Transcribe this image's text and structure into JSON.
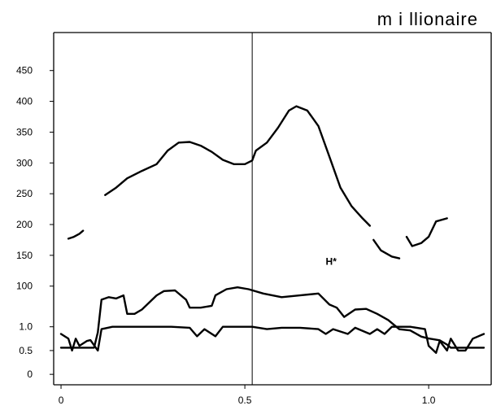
{
  "chart_data": {
    "type": "line",
    "title": "m i llionaire",
    "xlabel": "",
    "ylabel": "",
    "xlim": [
      -0.02,
      1.17
    ],
    "x_ticks": [
      0,
      0.5,
      1.0
    ],
    "x_tick_labels": [
      "0",
      "0.5",
      "1.0"
    ],
    "vline_x": 0.52,
    "annotation": {
      "text": "H*",
      "x": 0.72,
      "y": 140
    },
    "upper_axis": {
      "ylim": [
        60,
        480
      ],
      "ticks": [
        100,
        150,
        200,
        250,
        300,
        350,
        400,
        450
      ],
      "tick_labels": [
        "100",
        "150",
        "200",
        "250",
        "300",
        "350",
        "400",
        "450"
      ]
    },
    "lower_axis": {
      "ylim": [
        -0.1,
        1.2
      ],
      "ticks": [
        0,
        0.5,
        1.0
      ],
      "tick_labels": [
        "0",
        "0.5",
        "1.0"
      ]
    },
    "series": [
      {
        "axis": "upper",
        "segments": [
          [
            [
              0.02,
              177
            ],
            [
              0.035,
              180
            ],
            [
              0.05,
              185
            ],
            [
              0.06,
              190
            ]
          ],
          [
            [
              0.12,
              248
            ],
            [
              0.15,
              260
            ],
            [
              0.18,
              275
            ],
            [
              0.22,
              287
            ],
            [
              0.26,
              298
            ],
            [
              0.29,
              320
            ],
            [
              0.32,
              333
            ],
            [
              0.35,
              334
            ],
            [
              0.38,
              328
            ],
            [
              0.41,
              318
            ],
            [
              0.44,
              305
            ],
            [
              0.47,
              298
            ],
            [
              0.5,
              298
            ],
            [
              0.52,
              304
            ],
            [
              0.53,
              320
            ],
            [
              0.56,
              333
            ],
            [
              0.59,
              357
            ],
            [
              0.62,
              385
            ],
            [
              0.64,
              392
            ],
            [
              0.67,
              385
            ],
            [
              0.7,
              360
            ],
            [
              0.73,
              310
            ],
            [
              0.76,
              260
            ],
            [
              0.79,
              230
            ],
            [
              0.82,
              210
            ],
            [
              0.84,
              198
            ]
          ],
          [
            [
              0.85,
              175
            ],
            [
              0.87,
              158
            ],
            [
              0.9,
              148
            ],
            [
              0.92,
              145
            ]
          ],
          [
            [
              0.94,
              180
            ],
            [
              0.955,
              165
            ],
            [
              0.98,
              170
            ],
            [
              1.0,
              180
            ],
            [
              1.02,
              205
            ],
            [
              1.05,
              210
            ]
          ]
        ]
      },
      {
        "axis": "upper",
        "segments": [
          [
            [
              0.0,
              0
            ],
            [
              0.09,
              0
            ],
            [
              0.1,
              25
            ],
            [
              0.11,
              78
            ],
            [
              0.13,
              82
            ],
            [
              0.15,
              80
            ],
            [
              0.17,
              85
            ],
            [
              0.18,
              55
            ],
            [
              0.2,
              55
            ],
            [
              0.22,
              62
            ],
            [
              0.26,
              85
            ],
            [
              0.28,
              92
            ],
            [
              0.31,
              93
            ],
            [
              0.34,
              78
            ],
            [
              0.35,
              65
            ],
            [
              0.38,
              65
            ],
            [
              0.41,
              68
            ],
            [
              0.42,
              85
            ],
            [
              0.45,
              95
            ],
            [
              0.48,
              98
            ],
            [
              0.51,
              95
            ],
            [
              0.55,
              88
            ],
            [
              0.6,
              82
            ],
            [
              0.65,
              85
            ],
            [
              0.7,
              88
            ],
            [
              0.73,
              70
            ],
            [
              0.75,
              65
            ],
            [
              0.77,
              50
            ],
            [
              0.8,
              62
            ],
            [
              0.83,
              63
            ],
            [
              0.86,
              55
            ],
            [
              0.89,
              45
            ],
            [
              0.92,
              30
            ],
            [
              0.95,
              28
            ],
            [
              0.98,
              18
            ],
            [
              1.0,
              15
            ],
            [
              1.03,
              12
            ],
            [
              1.05,
              5
            ],
            [
              1.06,
              0
            ],
            [
              1.15,
              0
            ]
          ]
        ]
      },
      {
        "axis": "lower",
        "segments": [
          [
            [
              0.0,
              0.85
            ],
            [
              0.02,
              0.75
            ],
            [
              0.03,
              0.5
            ],
            [
              0.04,
              0.75
            ],
            [
              0.05,
              0.6
            ],
            [
              0.07,
              0.7
            ],
            [
              0.08,
              0.72
            ],
            [
              0.1,
              0.5
            ],
            [
              0.11,
              0.95
            ],
            [
              0.14,
              1.0
            ],
            [
              0.2,
              1.0
            ],
            [
              0.3,
              1.0
            ],
            [
              0.35,
              0.98
            ],
            [
              0.37,
              0.8
            ],
            [
              0.39,
              0.95
            ],
            [
              0.42,
              0.8
            ],
            [
              0.44,
              1.0
            ],
            [
              0.52,
              1.0
            ],
            [
              0.56,
              0.95
            ],
            [
              0.6,
              0.98
            ],
            [
              0.65,
              0.98
            ],
            [
              0.7,
              0.95
            ],
            [
              0.72,
              0.85
            ],
            [
              0.74,
              0.95
            ],
            [
              0.78,
              0.85
            ],
            [
              0.8,
              0.98
            ],
            [
              0.84,
              0.85
            ],
            [
              0.86,
              0.95
            ],
            [
              0.88,
              0.85
            ],
            [
              0.9,
              1.0
            ],
            [
              0.95,
              1.0
            ],
            [
              0.99,
              0.95
            ],
            [
              1.0,
              0.6
            ],
            [
              1.02,
              0.45
            ],
            [
              1.03,
              0.7
            ],
            [
              1.05,
              0.5
            ],
            [
              1.06,
              0.75
            ],
            [
              1.08,
              0.5
            ],
            [
              1.1,
              0.5
            ],
            [
              1.12,
              0.75
            ],
            [
              1.15,
              0.85
            ]
          ]
        ]
      }
    ]
  }
}
